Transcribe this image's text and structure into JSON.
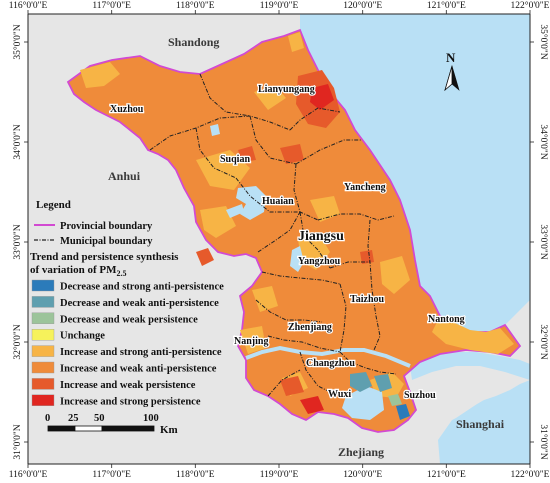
{
  "map": {
    "x_ticks": [
      "116°0'0\"E",
      "117°0'0\"E",
      "118°0'0\"E",
      "119°0'0\"E",
      "120°0'0\"E",
      "121°0'0\"E",
      "122°0'0\"E"
    ],
    "y_ticks": [
      "35°0'0\"N",
      "34°0'0\"N",
      "33°0'0\"N",
      "32°0'0\"N",
      "31°0'0\"N"
    ],
    "north_label": "N",
    "regions": {
      "shandong": "Shandong",
      "anhui": "Anhui",
      "zhejiang": "Zhejiang",
      "shanghai": "Shanghai",
      "jiangsu": "Jiangsu"
    },
    "cities": {
      "lianyungang": "Lianyungang",
      "xuzhou": "Xuzhou",
      "suqian": "Suqian",
      "yancheng": "Yancheng",
      "huaian": "Huaian",
      "yangzhou": "Yangzhou",
      "taizhou": "Taizhou",
      "nantong": "Nantong",
      "nanjing": "Nanjing",
      "zhenjiang": "Zhenjiang",
      "changzhou": "Changzhou",
      "wuxi": "Wuxi",
      "suzhou": "Suzhou"
    }
  },
  "legend": {
    "title": "Legend",
    "provincial_boundary": "Provincial boundary",
    "municipal_boundary": "Municipal boundary",
    "synthesis_title_line1": "Trend and persistence synthesis",
    "synthesis_title_line2_prefix": "of variation of PM",
    "synthesis_title_line2_sub": "2.5",
    "items": [
      {
        "label": "Decrease and strong anti-persistence",
        "color": "#2b7bba"
      },
      {
        "label": "Decrease and weak anti-persistence",
        "color": "#5f9faf"
      },
      {
        "label": "Decrease and weak persistence",
        "color": "#9cc49a"
      },
      {
        "label": "Unchange",
        "color": "#f6f25b"
      },
      {
        "label": "Increase and strong anti-persistence",
        "color": "#f7b445"
      },
      {
        "label": "Increase and weak anti-persistence",
        "color": "#ef8b3a"
      },
      {
        "label": "Increase and weak persistence",
        "color": "#e65a2b"
      },
      {
        "label": "Increase and strong persistence",
        "color": "#e02620"
      }
    ]
  },
  "scale_bar": {
    "labels": [
      "0",
      "25",
      "50",
      "100"
    ],
    "unit": "Km"
  },
  "colors": {
    "sea": "#b9e0f5",
    "land_outside": "#e6e6e6",
    "jiangsu_base": "#ef8b3a"
  }
}
